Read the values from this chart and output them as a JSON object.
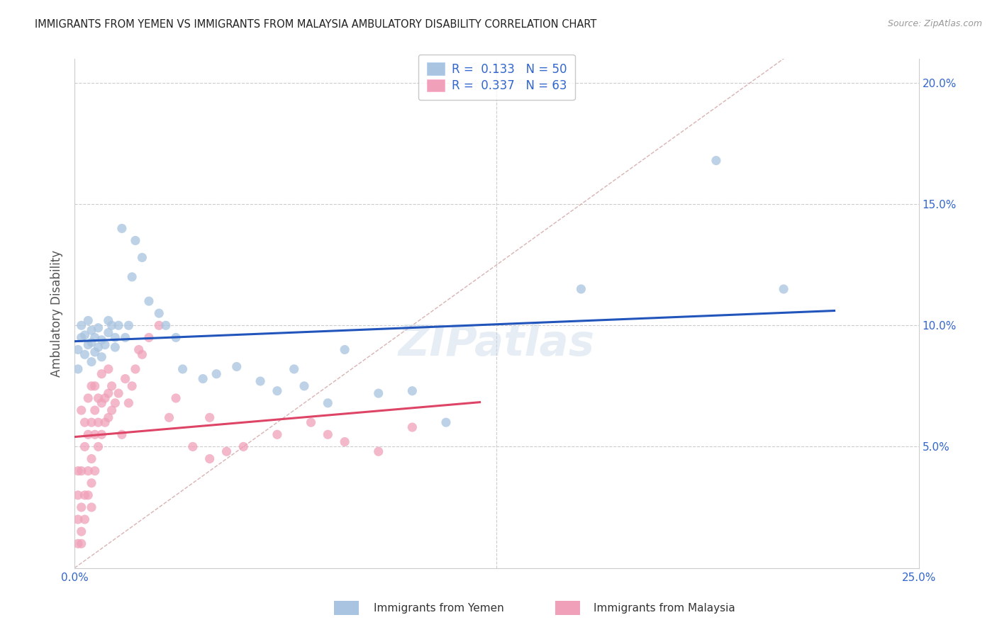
{
  "title": "IMMIGRANTS FROM YEMEN VS IMMIGRANTS FROM MALAYSIA AMBULATORY DISABILITY CORRELATION CHART",
  "source": "Source: ZipAtlas.com",
  "ylabel": "Ambulatory Disability",
  "xlim": [
    0.0,
    0.25
  ],
  "ylim": [
    0.0,
    0.21
  ],
  "xtick_positions": [
    0.0,
    0.05,
    0.1,
    0.15,
    0.2,
    0.25
  ],
  "xtick_labels": [
    "0.0%",
    "",
    "",
    "",
    "",
    "25.0%"
  ],
  "ytick_positions": [
    0.05,
    0.1,
    0.15,
    0.2
  ],
  "ytick_labels": [
    "5.0%",
    "10.0%",
    "15.0%",
    "20.0%"
  ],
  "color_yemen": "#a8c4e0",
  "color_malaysia": "#f0a0b8",
  "color_line_yemen": "#2255bb",
  "color_line_malaysia": "#dd4466",
  "color_diagonal": "#d0a0a0",
  "r_yemen": 0.133,
  "n_yemen": 50,
  "r_malaysia": 0.337,
  "n_malaysia": 63,
  "legend_bottom_label1": "Immigrants from Yemen",
  "legend_bottom_label2": "Immigrants from Malaysia",
  "yemen_x": [
    0.001,
    0.001,
    0.002,
    0.002,
    0.003,
    0.003,
    0.004,
    0.004,
    0.005,
    0.005,
    0.005,
    0.006,
    0.006,
    0.007,
    0.007,
    0.008,
    0.008,
    0.009,
    0.01,
    0.01,
    0.011,
    0.012,
    0.012,
    0.013,
    0.014,
    0.015,
    0.016,
    0.017,
    0.018,
    0.02,
    0.022,
    0.025,
    0.027,
    0.03,
    0.032,
    0.038,
    0.042,
    0.048,
    0.055,
    0.06,
    0.065,
    0.068,
    0.075,
    0.08,
    0.09,
    0.1,
    0.11,
    0.15,
    0.19,
    0.21
  ],
  "yemen_y": [
    0.082,
    0.09,
    0.095,
    0.1,
    0.088,
    0.096,
    0.092,
    0.102,
    0.085,
    0.093,
    0.098,
    0.089,
    0.095,
    0.091,
    0.099,
    0.094,
    0.087,
    0.092,
    0.102,
    0.097,
    0.1,
    0.091,
    0.095,
    0.1,
    0.14,
    0.095,
    0.1,
    0.12,
    0.135,
    0.128,
    0.11,
    0.105,
    0.1,
    0.095,
    0.082,
    0.078,
    0.08,
    0.083,
    0.077,
    0.073,
    0.082,
    0.075,
    0.068,
    0.09,
    0.072,
    0.073,
    0.06,
    0.115,
    0.168,
    0.115
  ],
  "malaysia_x": [
    0.001,
    0.001,
    0.001,
    0.001,
    0.002,
    0.002,
    0.002,
    0.002,
    0.002,
    0.003,
    0.003,
    0.003,
    0.003,
    0.004,
    0.004,
    0.004,
    0.004,
    0.005,
    0.005,
    0.005,
    0.005,
    0.005,
    0.006,
    0.006,
    0.006,
    0.006,
    0.007,
    0.007,
    0.007,
    0.008,
    0.008,
    0.008,
    0.009,
    0.009,
    0.01,
    0.01,
    0.01,
    0.011,
    0.011,
    0.012,
    0.013,
    0.014,
    0.015,
    0.016,
    0.017,
    0.018,
    0.019,
    0.02,
    0.022,
    0.025,
    0.028,
    0.03,
    0.035,
    0.04,
    0.04,
    0.045,
    0.05,
    0.06,
    0.07,
    0.075,
    0.08,
    0.09,
    0.1
  ],
  "malaysia_y": [
    0.01,
    0.02,
    0.03,
    0.04,
    0.01,
    0.015,
    0.025,
    0.04,
    0.065,
    0.02,
    0.03,
    0.05,
    0.06,
    0.03,
    0.04,
    0.055,
    0.07,
    0.025,
    0.035,
    0.045,
    0.06,
    0.075,
    0.04,
    0.055,
    0.065,
    0.075,
    0.05,
    0.06,
    0.07,
    0.055,
    0.068,
    0.08,
    0.06,
    0.07,
    0.062,
    0.072,
    0.082,
    0.065,
    0.075,
    0.068,
    0.072,
    0.055,
    0.078,
    0.068,
    0.075,
    0.082,
    0.09,
    0.088,
    0.095,
    0.1,
    0.062,
    0.07,
    0.05,
    0.045,
    0.062,
    0.048,
    0.05,
    0.055,
    0.06,
    0.055,
    0.052,
    0.048,
    0.058
  ]
}
